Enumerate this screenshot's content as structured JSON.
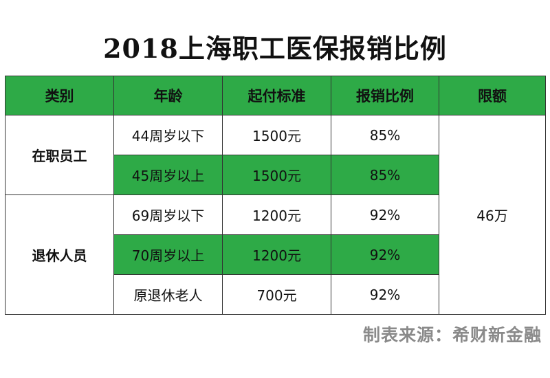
{
  "title": "2018上海职工医保报销比例",
  "table": {
    "headers": [
      "类别",
      "年龄",
      "起付标准",
      "报销比例",
      "限额"
    ],
    "groups": [
      {
        "category": "在职员工",
        "rows": [
          {
            "age": "44周岁以下",
            "deductible": "1500元",
            "ratio": "85%"
          },
          {
            "age": "45周岁以上",
            "deductible": "1500元",
            "ratio": "85%"
          }
        ]
      },
      {
        "category": "退休人员",
        "rows": [
          {
            "age": "69周岁以下",
            "deductible": "1200元",
            "ratio": "92%"
          },
          {
            "age": "70周岁以上",
            "deductible": "1200元",
            "ratio": "92%"
          },
          {
            "age": "原退休老人",
            "deductible": "700元",
            "ratio": "92%"
          }
        ]
      }
    ],
    "limit": "46万"
  },
  "source": "制表来源：希财新金融",
  "colors": {
    "header_green": "#2eaa47",
    "row_green": "#2eaa47",
    "source_gray": "#8a8a8a"
  }
}
